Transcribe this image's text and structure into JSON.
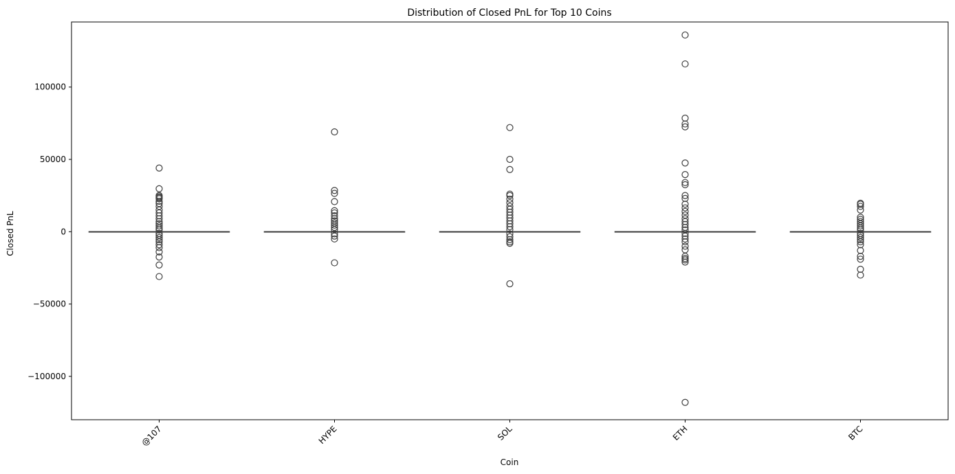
{
  "chart_data": {
    "type": "box",
    "title": "Distribution of Closed PnL for Top 10 Coins",
    "xlabel": "Coin",
    "ylabel": "Closed PnL",
    "ylim": [
      -130000,
      145000
    ],
    "yticks": [
      -100000,
      -50000,
      0,
      50000,
      100000
    ],
    "ytick_labels": [
      "−100000",
      "−50000",
      "0",
      "50000",
      "100000"
    ],
    "grid": false,
    "categories": [
      "@107",
      "HYPE",
      "SOL",
      "ETH",
      "BTC"
    ],
    "box_color": "#3d3d3d",
    "series": [
      {
        "category": "@107",
        "median": 0,
        "q1": 0,
        "q3": 0,
        "whisker_low": 0,
        "whisker_high": 0,
        "outliers": [
          44000,
          29700,
          25000,
          24200,
          23500,
          22800,
          21000,
          19500,
          17500,
          15000,
          13000,
          11000,
          9000,
          7000,
          5500,
          4000,
          2500,
          1200,
          -1200,
          -2500,
          -4000,
          -5500,
          -7000,
          -9000,
          -11000,
          -14000,
          -17500,
          -23000,
          -31000
        ]
      },
      {
        "category": "HYPE",
        "median": 0,
        "q1": 0,
        "q3": 0,
        "whisker_low": 0,
        "whisker_high": 0,
        "outliers": [
          69000,
          28500,
          26500,
          20800,
          14500,
          13000,
          11000,
          9000,
          7500,
          6000,
          4500,
          3000,
          1500,
          -1500,
          -3000,
          -5000,
          -21500
        ]
      },
      {
        "category": "SOL",
        "median": 0,
        "q1": 0,
        "q3": 0,
        "whisker_low": 0,
        "whisker_high": 0,
        "outliers": [
          72000,
          50000,
          43000,
          26000,
          25000,
          22500,
          20000,
          17500,
          15500,
          13500,
          11500,
          9500,
          7500,
          5500,
          3500,
          1500,
          -1500,
          -3500,
          -5500,
          -7000,
          -8000,
          -36000
        ]
      },
      {
        "category": "ETH",
        "median": 0,
        "q1": 0,
        "q3": 0,
        "whisker_low": 0,
        "whisker_high": 0,
        "outliers": [
          136000,
          116000,
          78500,
          74500,
          72500,
          47500,
          39500,
          34000,
          32500,
          25000,
          23000,
          19000,
          16500,
          14000,
          11500,
          9000,
          7000,
          5000,
          3000,
          1200,
          -1200,
          -3000,
          -5000,
          -7000,
          -10000,
          -12500,
          -17000,
          -18500,
          -19500,
          -21000,
          -118000
        ]
      },
      {
        "category": "BTC",
        "median": 0,
        "q1": 0,
        "q3": 0,
        "whisker_low": 0,
        "whisker_high": 0,
        "outliers": [
          19700,
          19000,
          17500,
          15000,
          10000,
          8500,
          7000,
          5500,
          4000,
          2500,
          1200,
          -1200,
          -2500,
          -4000,
          -5500,
          -7000,
          -9000,
          -13000,
          -17000,
          -19000,
          -26000,
          -30000
        ]
      }
    ]
  }
}
